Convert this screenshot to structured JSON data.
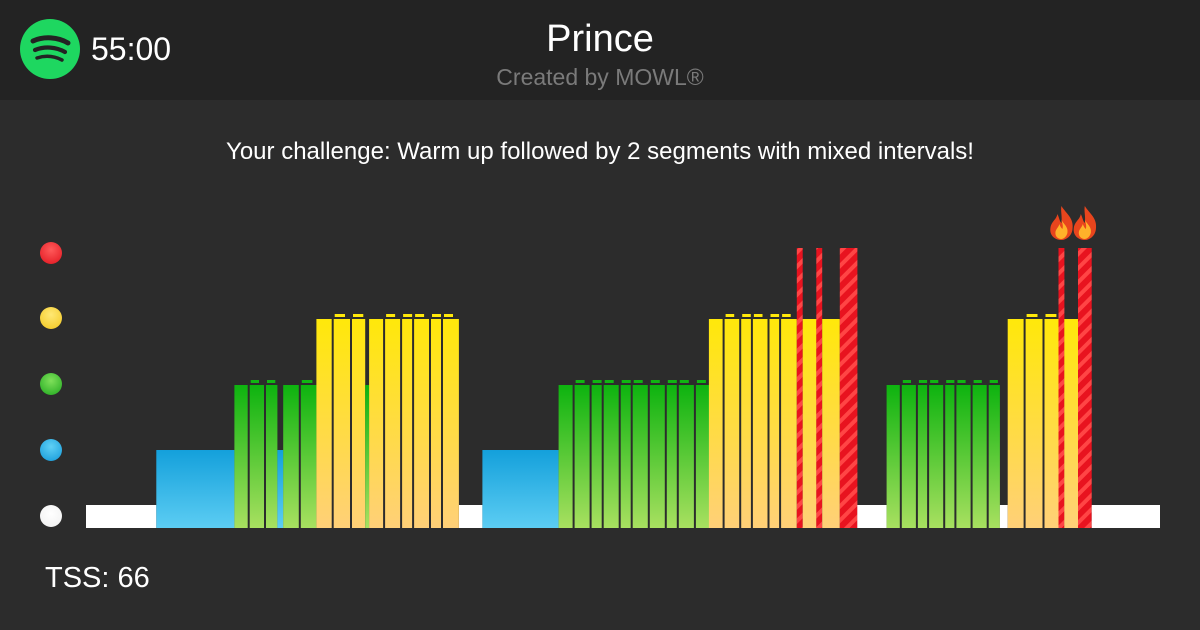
{
  "app": {
    "logo_icon": "spotify-icon",
    "brand_color": "#1ed760"
  },
  "header": {
    "duration": "55:00",
    "title": "Prince",
    "subtitle": "Created by MOWL®"
  },
  "challenge_text": "Your challenge: Warm up followed by 2 segments with mixed intervals!",
  "tss_text": "TSS: 66",
  "zones": [
    {
      "name": "white",
      "color": "#ffffff",
      "level": 1
    },
    {
      "name": "blue",
      "color": "#1aa3e0",
      "level": 2
    },
    {
      "name": "green",
      "color": "#2db52a",
      "level": 3
    },
    {
      "name": "yellow",
      "color": "#f7d63a",
      "level": 4
    },
    {
      "name": "red",
      "color": "#e8202a",
      "level": 5
    }
  ],
  "chart_data": {
    "type": "bar",
    "total_minutes": 55,
    "levels": 5,
    "segments": [
      {
        "start": 0.0,
        "end": 3.6,
        "zone": 1
      },
      {
        "start": 3.6,
        "end": 7.6,
        "zone": 2
      },
      {
        "start": 7.6,
        "end": 9.8,
        "zone": 3
      },
      {
        "start": 9.8,
        "end": 10.1,
        "zone": 2
      },
      {
        "start": 10.1,
        "end": 11.8,
        "zone": 3
      },
      {
        "start": 11.8,
        "end": 14.3,
        "zone": 4
      },
      {
        "start": 14.3,
        "end": 14.5,
        "zone": 3
      },
      {
        "start": 14.5,
        "end": 19.1,
        "zone": 4
      },
      {
        "start": 19.1,
        "end": 20.3,
        "zone": 1
      },
      {
        "start": 20.3,
        "end": 24.2,
        "zone": 2
      },
      {
        "start": 24.2,
        "end": 31.9,
        "zone": 3
      },
      {
        "start": 31.9,
        "end": 36.4,
        "zone": 4
      },
      {
        "start": 36.4,
        "end": 36.7,
        "zone": 5
      },
      {
        "start": 36.7,
        "end": 37.4,
        "zone": 4
      },
      {
        "start": 37.4,
        "end": 37.7,
        "zone": 5
      },
      {
        "start": 37.7,
        "end": 38.6,
        "zone": 4
      },
      {
        "start": 38.6,
        "end": 39.5,
        "zone": 5
      },
      {
        "start": 39.5,
        "end": 41.0,
        "zone": 1
      },
      {
        "start": 41.0,
        "end": 46.8,
        "zone": 3
      },
      {
        "start": 46.8,
        "end": 47.2,
        "zone": 1
      },
      {
        "start": 47.2,
        "end": 49.8,
        "zone": 4
      },
      {
        "start": 49.8,
        "end": 50.1,
        "zone": 5
      },
      {
        "start": 50.1,
        "end": 50.8,
        "zone": 4
      },
      {
        "start": 50.8,
        "end": 51.5,
        "zone": 5
      },
      {
        "start": 51.5,
        "end": 55.0,
        "zone": 1
      }
    ],
    "fire_markers_icon": "fire-icon"
  }
}
